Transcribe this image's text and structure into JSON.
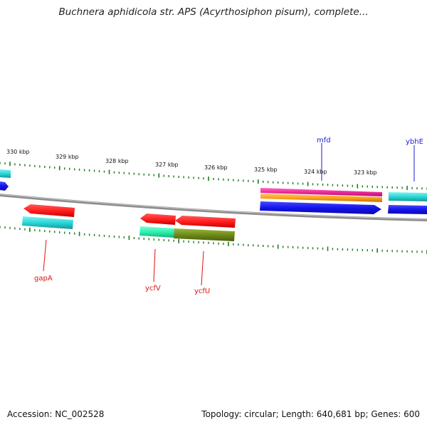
{
  "title": "Buchnera aphidicola str. APS (Acyrthosiphon pisum), complete...",
  "footer": {
    "accession": "Accession: NC_002528",
    "summary": "Topology: circular; Length: 640,681 bp; Genes: 600"
  },
  "colors": {
    "backbone": "#8c8c8c",
    "tick": "#1e7a1e",
    "forward_label": "#1f1fcf",
    "reverse_label": "#e01010",
    "red_gene": "#ff1a1a",
    "cyan_gene": "#2ad6d6",
    "blue_gene": "#1414ee",
    "spring_gene": "#2cf2b0",
    "olive_gene": "#6e8a1a",
    "magenta_gene": "#ee2a9a",
    "orange_gene": "#ffa21a"
  },
  "ticks": {
    "labels": [
      "330 kbp",
      "329 kbp",
      "328 kbp",
      "327 kbp",
      "326 kbp",
      "325 kbp",
      "324 kbp",
      "323 kbp"
    ]
  },
  "gene_labels": {
    "mfd": "mfd",
    "ybhE": "ybhE",
    "gapA": "gapA",
    "ycfV": "ycfV",
    "ycfU": "ycfU"
  }
}
